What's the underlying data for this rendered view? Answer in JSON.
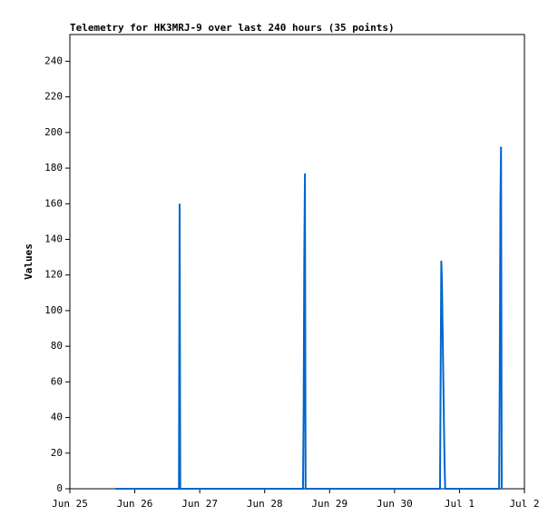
{
  "chart_data": {
    "type": "line",
    "title": "Telemetry for HK3MRJ-9 over last 240 hours (35 points)",
    "y_label": "Values",
    "x": [
      0.7,
      0.9,
      1.0,
      1.2,
      1.4,
      1.68,
      1.69,
      1.7,
      2.0,
      2.5,
      3.0,
      3.59,
      3.6,
      3.61,
      3.62,
      3.63,
      4.0,
      4.5,
      5.0,
      5.5,
      5.7,
      5.71,
      5.72,
      5.73,
      5.74,
      5.75,
      5.76,
      5.77,
      5.78,
      6.2,
      6.61,
      6.62,
      6.63,
      6.64,
      6.65
    ],
    "values": [
      0,
      0,
      0,
      0,
      0,
      0,
      160,
      0,
      0,
      0,
      0,
      0,
      44,
      132,
      177,
      0,
      0,
      0,
      0,
      0,
      0,
      64,
      128,
      116,
      90,
      64,
      39,
      14,
      0,
      0,
      0,
      64,
      160,
      192,
      0
    ],
    "color": "#0066cc",
    "xlim": [
      0,
      7
    ],
    "xticks": [
      {
        "value": 0,
        "label": "Jun 25"
      },
      {
        "value": 1,
        "label": "Jun 26"
      },
      {
        "value": 2,
        "label": "Jun 27"
      },
      {
        "value": 3,
        "label": "Jun 28"
      },
      {
        "value": 4,
        "label": "Jun 29"
      },
      {
        "value": 5,
        "label": "Jun 30"
      },
      {
        "value": 6,
        "label": "Jul 1"
      },
      {
        "value": 7,
        "label": "Jul 2"
      }
    ],
    "ylim": [
      0,
      255
    ],
    "yticks": [
      0,
      20,
      40,
      60,
      80,
      100,
      120,
      140,
      160,
      180,
      200,
      220,
      240
    ]
  }
}
